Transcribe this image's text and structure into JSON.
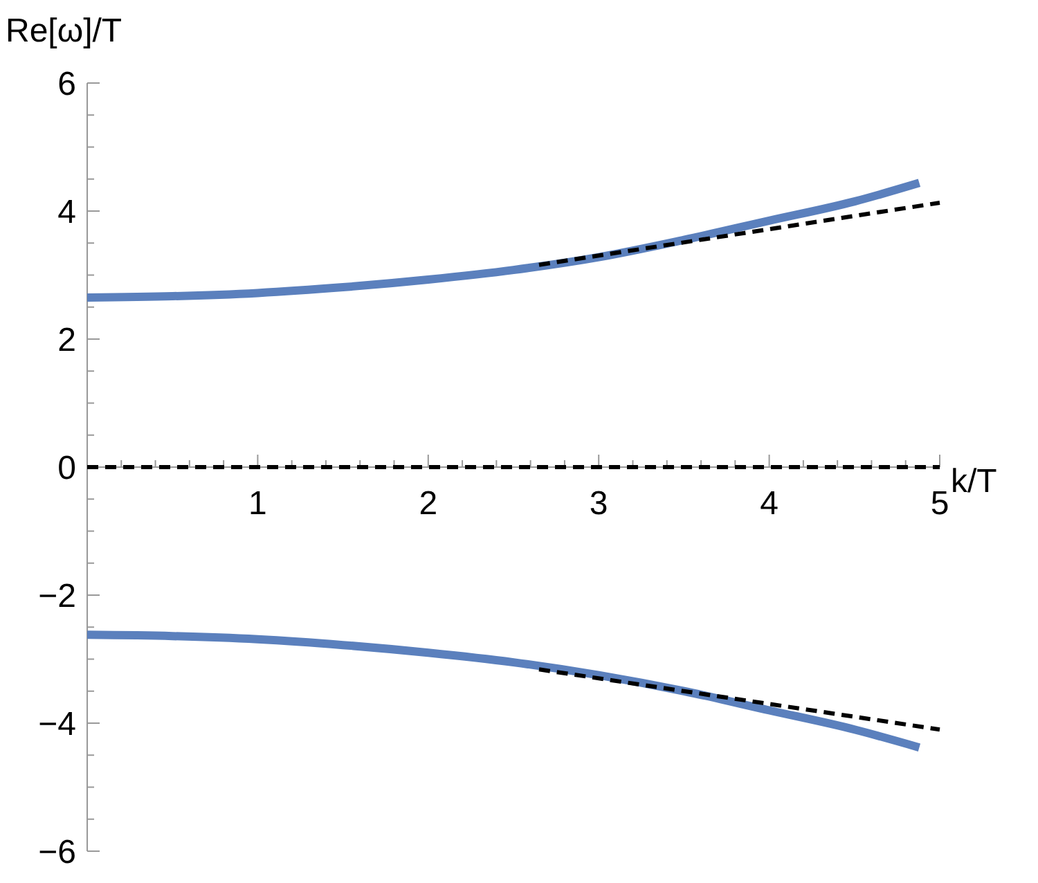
{
  "chart_data": {
    "type": "line",
    "xlabel": "k/T",
    "ylabel": "Re[ω]/T",
    "xlim": [
      0,
      5
    ],
    "ylim": [
      -6,
      6
    ],
    "xticks": [
      {
        "value": 0.2,
        "label": null
      },
      {
        "value": 0.4,
        "label": null
      },
      {
        "value": 0.6,
        "label": null
      },
      {
        "value": 0.8,
        "label": null
      },
      1,
      {
        "value": 1.2,
        "label": null
      },
      {
        "value": 1.4,
        "label": null
      },
      {
        "value": 1.6,
        "label": null
      },
      {
        "value": 1.8,
        "label": null
      },
      2,
      {
        "value": 2.2,
        "label": null
      },
      {
        "value": 2.4,
        "label": null
      },
      {
        "value": 2.6,
        "label": null
      },
      {
        "value": 2.8,
        "label": null
      },
      3,
      {
        "value": 3.2,
        "label": null
      },
      {
        "value": 3.4,
        "label": null
      },
      {
        "value": 3.6,
        "label": null
      },
      {
        "value": 3.8,
        "label": null
      },
      4,
      {
        "value": 4.2,
        "label": null
      },
      {
        "value": 4.4,
        "label": null
      },
      {
        "value": 4.6,
        "label": null
      },
      {
        "value": 4.8,
        "label": null
      },
      5
    ],
    "yticks": [
      -6,
      {
        "value": -5.5,
        "label": null
      },
      {
        "value": -5,
        "label": null
      },
      {
        "value": -4.5,
        "label": null
      },
      -4,
      {
        "value": -3.5,
        "label": null
      },
      {
        "value": -3,
        "label": null
      },
      {
        "value": -2.5,
        "label": null
      },
      -2,
      {
        "value": -1.5,
        "label": null
      },
      {
        "value": -1,
        "label": null
      },
      {
        "value": -0.5,
        "label": null
      },
      0,
      {
        "value": 0.5,
        "label": null
      },
      {
        "value": 1,
        "label": null
      },
      {
        "value": 1.5,
        "label": null
      },
      2,
      {
        "value": 2.5,
        "label": null
      },
      {
        "value": 3,
        "label": null
      },
      {
        "value": 3.5,
        "label": null
      },
      4,
      {
        "value": 4.5,
        "label": null
      },
      {
        "value": 5,
        "label": null
      },
      {
        "value": 5.5,
        "label": null
      },
      6
    ],
    "grid": false,
    "marker": "none",
    "series": [
      {
        "color": "#000000",
        "line_style": "dashed",
        "x": [
          0,
          5
        ],
        "values": [
          0,
          0
        ]
      },
      {
        "color": "#000000",
        "line_style": "dashed",
        "x": [
          2.65,
          5
        ],
        "values": [
          3.16,
          4.13
        ]
      },
      {
        "color": "#000000",
        "line_style": "dashed",
        "x": [
          2.65,
          5
        ],
        "values": [
          -3.16,
          -4.1
        ]
      },
      {
        "color": "#5b80bd",
        "line_style": "solid",
        "x": [
          0,
          0.5,
          1,
          1.5,
          2,
          2.5,
          3,
          3.5,
          4,
          4.5,
          4.88
        ],
        "values": [
          2.65,
          2.67,
          2.72,
          2.81,
          2.93,
          3.08,
          3.28,
          3.55,
          3.85,
          4.15,
          4.44
        ]
      },
      {
        "color": "#5b80bd",
        "line_style": "solid",
        "x": [
          0,
          0.5,
          1,
          1.5,
          2,
          2.5,
          3,
          3.5,
          4,
          4.5,
          4.88
        ],
        "values": [
          -2.62,
          -2.64,
          -2.69,
          -2.78,
          -2.9,
          -3.05,
          -3.25,
          -3.5,
          -3.8,
          -4.1,
          -4.38
        ]
      }
    ]
  }
}
